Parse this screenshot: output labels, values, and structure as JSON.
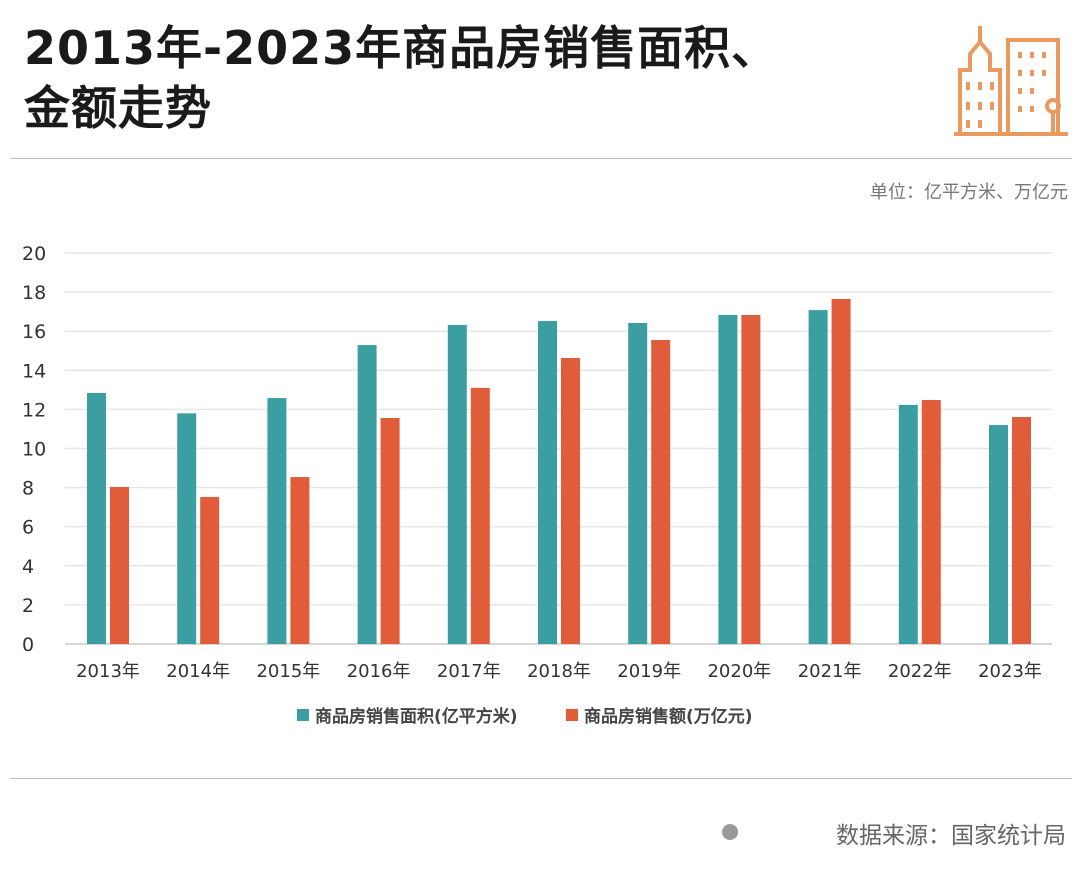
{
  "header": {
    "title_line1": "2013年-2023年商品房销售面积、",
    "title_line2": "金额走势",
    "icon": "city-buildings-icon",
    "icon_color": "#ea9a5e"
  },
  "unit_label": "单位：亿平方米、万亿元",
  "source": "数据来源：国家统计局",
  "chart_data": {
    "type": "bar",
    "categories": [
      "2013年",
      "2014年",
      "2015年",
      "2016年",
      "2017年",
      "2018年",
      "2019年",
      "2020年",
      "2021年",
      "2022年",
      "2023年"
    ],
    "series": [
      {
        "name": "商品房销售面积(亿平方米)",
        "color": "#3b9ea1",
        "values": [
          12.84,
          11.8,
          12.58,
          15.29,
          16.32,
          16.52,
          16.42,
          16.83,
          17.08,
          12.23,
          11.2
        ]
      },
      {
        "name": "商品房销售额(万亿元)",
        "color": "#e15c3b",
        "values": [
          8.03,
          7.52,
          8.54,
          11.56,
          13.1,
          14.63,
          15.55,
          16.83,
          17.65,
          12.48,
          11.61
        ]
      }
    ],
    "ylim": [
      0,
      20
    ],
    "yticks": [
      0,
      2,
      4,
      6,
      8,
      10,
      12,
      14,
      16,
      18,
      20
    ],
    "grid": true,
    "legend": "bottom"
  }
}
